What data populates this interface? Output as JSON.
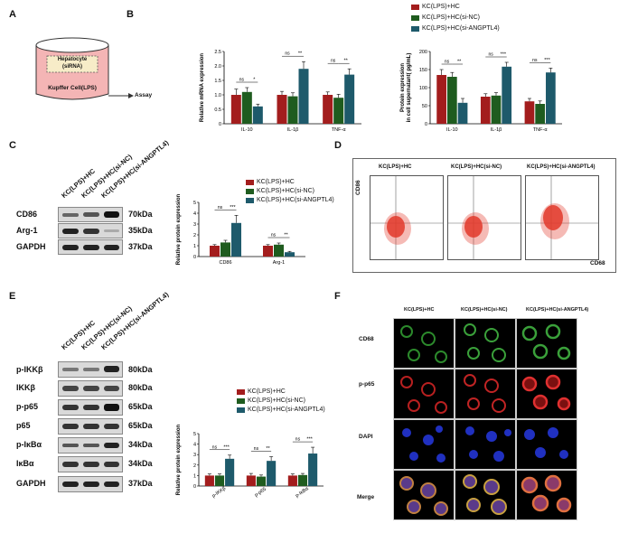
{
  "panels": {
    "A": "A",
    "B": "B",
    "C": "C",
    "D": "D",
    "E": "E",
    "F": "F"
  },
  "panelA": {
    "inner_label": "Hepatocyte\n(siRNA)",
    "inner_line1": "Hepatocyte",
    "inner_line2": "(siRNA)",
    "outer_label": "Kupffer Cell(LPS)",
    "arrow_label": "Assay"
  },
  "legend": {
    "items": [
      {
        "label": "KC(LPS)+HC",
        "color": "#a31d1d"
      },
      {
        "label": "KC(LPS)+HC(si-NC)",
        "color": "#1f5c1f"
      },
      {
        "label": "KC(LPS)+HC(si-ANGPTL4)",
        "color": "#1e5a6b"
      }
    ]
  },
  "colors": {
    "s1": "#a31d1d",
    "s2": "#1f5c1f",
    "s3": "#1e5a6b"
  },
  "chart_data": [
    {
      "id": "B-mrna",
      "type": "bar",
      "ylabel": "Relative mRNA expression",
      "categories": [
        "IL-10",
        "IL-1β",
        "TNF-α"
      ],
      "ylim": [
        0,
        2.5
      ],
      "yticks": [
        "0",
        "0.5",
        "1.0",
        "1.5",
        "2.0",
        "2.5"
      ],
      "series": [
        {
          "name": "KC(LPS)+HC",
          "values": [
            1.0,
            1.0,
            1.0
          ],
          "errors": [
            0.2,
            0.12,
            0.1
          ]
        },
        {
          "name": "KC(LPS)+HC(si-NC)",
          "values": [
            1.1,
            0.95,
            0.9
          ],
          "errors": [
            0.15,
            0.12,
            0.12
          ]
        },
        {
          "name": "KC(LPS)+HC(si-ANGPTL4)",
          "values": [
            0.6,
            1.9,
            1.7
          ],
          "errors": [
            0.08,
            0.25,
            0.2
          ]
        }
      ],
      "significance": [
        [
          "ns",
          "*"
        ],
        [
          "ns",
          "**"
        ],
        [
          "ns",
          "**"
        ]
      ]
    },
    {
      "id": "B-protein",
      "type": "bar",
      "ylabel": "Protein expression\nin cell supernatant( pg/mL)",
      "ylabel_line1": "Protein expression",
      "ylabel_line2": "in cell supernatant( pg/mL)",
      "categories": [
        "IL-10",
        "IL-1β",
        "TNF-α"
      ],
      "ylim": [
        0,
        200
      ],
      "yticks": [
        "0",
        "50",
        "100",
        "150",
        "200"
      ],
      "series": [
        {
          "name": "KC(LPS)+HC",
          "values": [
            135,
            75,
            62
          ],
          "errors": [
            15,
            8,
            8
          ]
        },
        {
          "name": "KC(LPS)+HC(si-NC)",
          "values": [
            130,
            78,
            55
          ],
          "errors": [
            12,
            8,
            8
          ]
        },
        {
          "name": "KC(LPS)+HC(si-ANGPTL4)",
          "values": [
            58,
            158,
            142
          ],
          "errors": [
            12,
            12,
            12
          ]
        }
      ],
      "significance": [
        [
          "ns",
          "**"
        ],
        [
          "ns",
          "***"
        ],
        [
          "ns",
          "***"
        ]
      ]
    },
    {
      "id": "C-quant",
      "type": "bar",
      "ylabel": "Relative protein expression",
      "categories": [
        "CD86",
        "Arg-1"
      ],
      "ylim": [
        0,
        5
      ],
      "yticks": [
        "0",
        "1",
        "2",
        "3",
        "4",
        "5"
      ],
      "series": [
        {
          "name": "KC(LPS)+HC",
          "values": [
            1.0,
            1.0
          ],
          "errors": [
            0.1,
            0.1
          ]
        },
        {
          "name": "KC(LPS)+HC(si-NC)",
          "values": [
            1.3,
            1.1
          ],
          "errors": [
            0.2,
            0.15
          ]
        },
        {
          "name": "KC(LPS)+HC(si-ANGPTL4)",
          "values": [
            3.1,
            0.4
          ],
          "errors": [
            0.7,
            0.08
          ]
        }
      ],
      "significance": [
        [
          "ns",
          "***"
        ],
        [
          "ns",
          "**"
        ]
      ]
    },
    {
      "id": "E-quant",
      "type": "bar",
      "ylabel": "Relative protein expression",
      "categories": [
        "p-IKKβ",
        "p-p65",
        "p-IκBα"
      ],
      "ylim": [
        0,
        5
      ],
      "yticks": [
        "0",
        "1",
        "2",
        "3",
        "4",
        "5"
      ],
      "series": [
        {
          "name": "KC(LPS)+HC",
          "values": [
            1.0,
            1.0,
            1.0
          ],
          "errors": [
            0.15,
            0.2,
            0.15
          ]
        },
        {
          "name": "KC(LPS)+HC(si-NC)",
          "values": [
            1.0,
            0.9,
            1.05
          ],
          "errors": [
            0.15,
            0.15,
            0.15
          ]
        },
        {
          "name": "KC(LPS)+HC(si-ANGPTL4)",
          "values": [
            2.6,
            2.4,
            3.1
          ],
          "errors": [
            0.35,
            0.4,
            0.6
          ]
        }
      ],
      "significance": [
        [
          "ns",
          "***"
        ],
        [
          "ns",
          "**"
        ],
        [
          "ns",
          "***"
        ]
      ]
    }
  ],
  "blotC": {
    "lanes": [
      "KC(LPS)+HC",
      "KC(LPS)+HC(si-NC)",
      "KC(LPS)+HC(si-ANGPTL4)"
    ],
    "rows": [
      {
        "label": "CD86",
        "kda": "70kDa"
      },
      {
        "label": "Arg-1",
        "kda": "35kDa"
      },
      {
        "label": "GAPDH",
        "kda": "37kDa"
      }
    ]
  },
  "blotE": {
    "lanes": [
      "KC(LPS)+HC",
      "KC(LPS)+HC(si-NC)",
      "KC(LPS)+HC(si-ANGPTL4)"
    ],
    "rows": [
      {
        "label": "p-IKKβ",
        "kda": "80kDa"
      },
      {
        "label": "IKKβ",
        "kda": "80kDa"
      },
      {
        "label": "p-p65",
        "kda": "65kDa"
      },
      {
        "label": "p65",
        "kda": "65kDa"
      },
      {
        "label": "p-IκBα",
        "kda": "34kDa"
      },
      {
        "label": "IκBα",
        "kda": "34kDa"
      },
      {
        "label": "GAPDH",
        "kda": "37kDa"
      }
    ]
  },
  "panelD": {
    "titles": [
      "KC(LPS)+HC",
      "KC(LPS)+HC(si-NC)",
      "KC(LPS)+HC(si-ANGPTL4)"
    ],
    "y_axis": "CD86",
    "x_axis": "CD68"
  },
  "panelF": {
    "columns": [
      "KC(LPS)+HC",
      "KC(LPS)+HC(si-NC)",
      "KC(LPS)+HC(si-ANGPTL4)"
    ],
    "rows": [
      "CD68",
      "p-p65",
      "DAPI",
      "Merge"
    ]
  }
}
